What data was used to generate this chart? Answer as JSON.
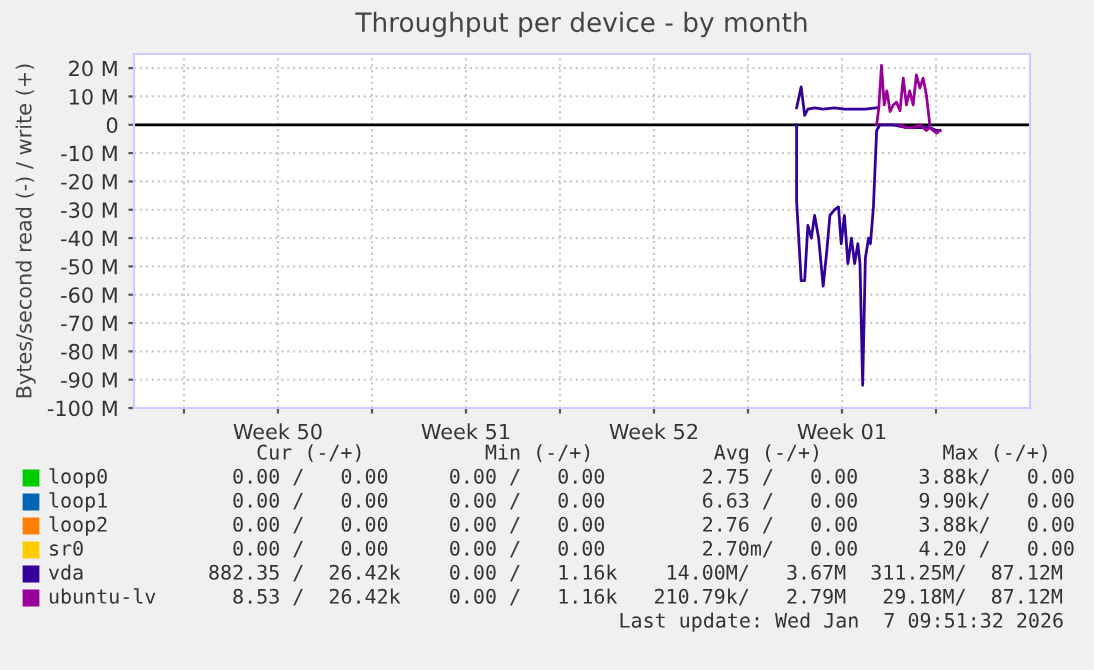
{
  "chart_data": {
    "type": "line",
    "title": "Throughput per device - by month",
    "ylabel": "Bytes/second read (-) / write (+)",
    "xlim": [
      "2025-12-06T03:21",
      "2026-01-08T12:00"
    ],
    "xticks": [
      {
        "value": "2025-12-08",
        "label": null
      },
      {
        "value": "2025-12-11T12:00",
        "label": "Week 50"
      },
      {
        "value": "2025-12-15",
        "label": null
      },
      {
        "value": "2025-12-18T12:00",
        "label": "Week 51"
      },
      {
        "value": "2025-12-22",
        "label": null
      },
      {
        "value": "2025-12-25T12:00",
        "label": "Week 52"
      },
      {
        "value": "2025-12-29",
        "label": null
      },
      {
        "value": "2026-01-01T12:00",
        "label": "Week 01"
      },
      {
        "value": "2026-01-05",
        "label": null
      }
    ],
    "ylim": [
      -100,
      25
    ],
    "yticks": [
      {
        "value": 20,
        "label": "20 M"
      },
      {
        "value": 10,
        "label": "10 M"
      },
      0,
      {
        "value": -10,
        "label": "-10 M"
      },
      {
        "value": -20,
        "label": "-20 M"
      },
      {
        "value": -30,
        "label": "-30 M"
      },
      {
        "value": -40,
        "label": "-40 M"
      },
      {
        "value": -50,
        "label": "-50 M"
      },
      {
        "value": -60,
        "label": "-60 M"
      },
      {
        "value": -70,
        "label": "-70 M"
      },
      {
        "value": -80,
        "label": "-80 M"
      },
      {
        "value": -90,
        "label": "-90 M"
      },
      {
        "value": -100,
        "label": "-100 M"
      }
    ],
    "grid": true,
    "legend": "bottom",
    "marker": "none",
    "line_style": "solid",
    "ref_lines": [
      {
        "axis": "y",
        "value": 0,
        "color": "#000000"
      }
    ],
    "series": [
      {
        "name": "loop0",
        "color": "#00cc00"
      },
      {
        "name": "loop1",
        "color": "#0066b3"
      },
      {
        "name": "loop2",
        "color": "#ff8000"
      },
      {
        "name": "sr0",
        "color": "#ffcc00"
      },
      {
        "name": "vda",
        "color": "#330099",
        "x": [
          "2025-12-30T19:26",
          "2025-12-30T23:31",
          "2025-12-31T02:38",
          "2025-12-31T05:31",
          "2025-12-31T11:31",
          "2025-12-31T19:12",
          "2026-01-01T05:17",
          "2026-01-01T14:10",
          "2026-01-01T23:17",
          "2026-01-02T08:53",
          "2026-01-02T18:58"
        ],
        "values": [
          6,
          13.4,
          3.3,
          5.5,
          6,
          5.5,
          6,
          5.5,
          5.5,
          5.5,
          6
        ]
      },
      {
        "color": "#330099",
        "x": [
          "2025-12-30T19:26",
          "2025-12-30T19:27",
          "2025-12-30T23:31",
          "2025-12-31T02:38",
          "2025-12-31T05:31",
          "2025-12-31T08:38",
          "2025-12-31T11:31",
          "2025-12-31T15:07",
          "2025-12-31T19:12",
          "2025-12-31T22:19",
          "2026-01-01T01:12",
          "2026-01-01T05:17",
          "2026-01-01T08:53",
          "2026-01-01T11:17",
          "2026-01-01T14:10",
          "2026-01-01T17:17",
          "2026-01-01T20:24",
          "2026-01-01T23:17",
          "2026-01-02T02:10",
          "2026-01-02T04:05",
          "2026-01-02T06:29",
          "2026-01-02T08:53",
          "2026-01-02T11:46",
          "2026-01-02T13:26",
          "2026-01-02T16:05",
          "2026-01-02T18:58",
          "2026-01-02T21:50",
          "2026-01-03T09:50",
          "2026-01-03T21:36",
          "2026-01-04T09:36",
          "2026-01-04T18:29",
          "2026-01-05T00:29",
          "2026-01-05T03:36"
        ],
        "values": [
          0,
          -27,
          -55,
          -55,
          -35.5,
          -40,
          -32,
          -40,
          -57,
          -45,
          -32,
          -30,
          -29,
          -42,
          -32,
          -49,
          -40,
          -49,
          -42,
          -49,
          -92,
          -47,
          -40,
          -42,
          -29,
          -2,
          0,
          0,
          -1,
          -1,
          -1,
          -2,
          -2
        ]
      },
      {
        "name": "ubuntu-lv",
        "color": "#990099",
        "x": [
          "2026-01-02T18:58",
          "2026-01-02T20:53",
          "2026-01-02T23:17",
          "2026-01-03T01:41",
          "2026-01-03T04:05",
          "2026-01-03T06:58",
          "2026-01-03T09:50",
          "2026-01-03T12:43",
          "2026-01-03T15:50",
          "2026-01-03T18:43",
          "2026-01-03T21:36",
          "2026-01-04T00:29",
          "2026-01-04T03:36",
          "2026-01-04T06:29",
          "2026-01-04T09:36",
          "2026-01-04T12:29",
          "2026-01-04T15:22",
          "2026-01-04T18:29"
        ],
        "values": [
          0,
          5.9,
          21,
          7,
          12,
          4.7,
          7,
          8,
          5,
          16.5,
          7,
          12,
          7,
          17.6,
          13,
          16.5,
          10.6,
          0
        ]
      },
      {
        "color": "#990099",
        "x": [
          "2026-01-03T15:50",
          "2026-01-03T21:36",
          "2026-01-04T03:36",
          "2026-01-04T09:36",
          "2026-01-04T15:22",
          "2026-01-04T18:29",
          "2026-01-05T00:29",
          "2026-01-05T03:36"
        ],
        "values": [
          0,
          -1,
          -1,
          0,
          -2,
          -1,
          -3,
          -2
        ]
      }
    ],
    "annotations": [
      "    Cur (-/+)          Min (-/+)          Avg (-/+)          Max (-/+) ",
      "  0.00 /   0.00     0.00 /   0.00        2.75 /   0.00     3.88k/   0.00 ",
      "  0.00 /   0.00     0.00 /   0.00        6.63 /   0.00     9.90k/   0.00 ",
      "  0.00 /   0.00     0.00 /   0.00        2.76 /   0.00     3.88k/   0.00 ",
      "  0.00 /   0.00     0.00 /   0.00        2.70m/   0.00     4.20 /   0.00 ",
      "882.35 /  26.42k    0.00 /   1.16k    14.00M/   3.67M  311.25M/  87.12M",
      "  8.53 /  26.42k    0.00 /   1.16k   210.79k/   2.79M   29.18M/  87.12M",
      "Last update: Wed Jan  7 09:51:32 2026"
    ]
  }
}
